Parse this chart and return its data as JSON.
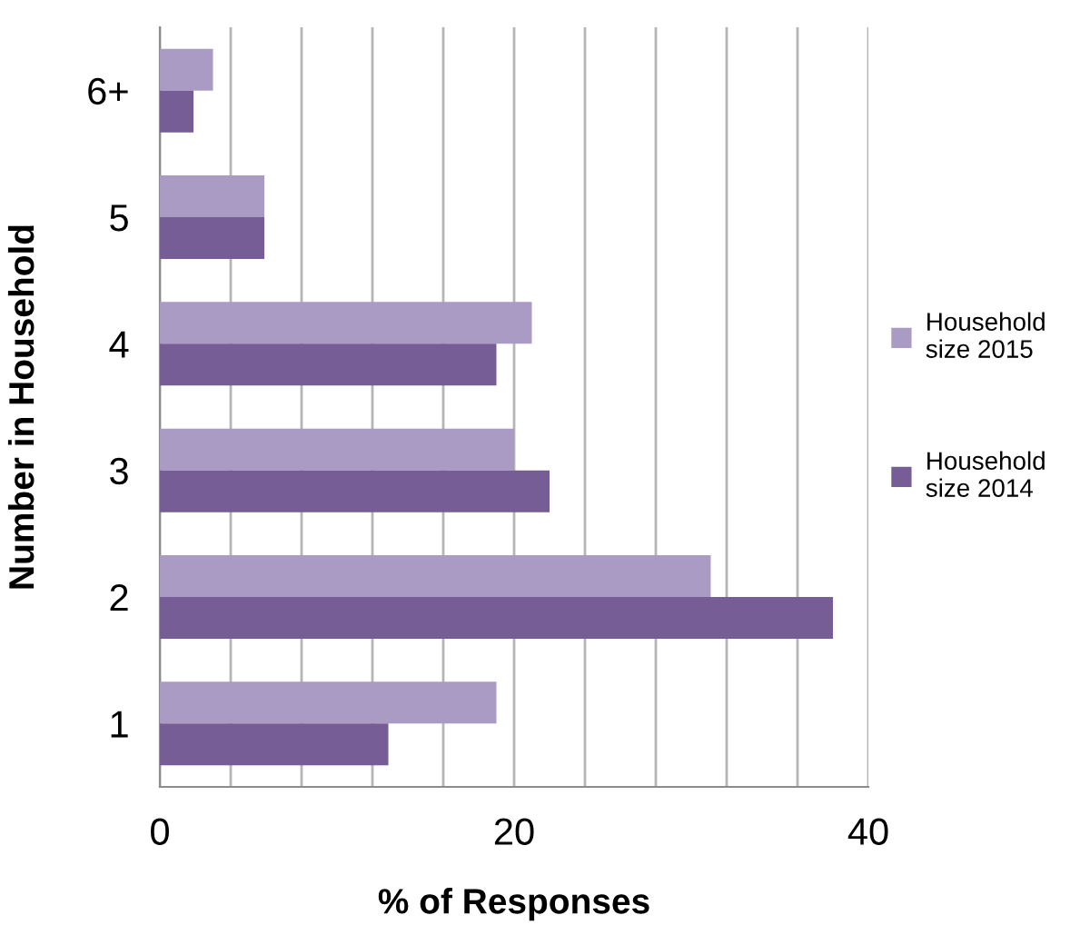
{
  "chart_data": {
    "type": "bar",
    "orientation": "horizontal",
    "categories": [
      "6+",
      "5",
      "4",
      "3",
      "2",
      "1"
    ],
    "series": [
      {
        "name": "Household\nsize 2015",
        "color": "#a99bc4",
        "values": [
          3.0,
          5.9,
          21.0,
          20.0,
          31.1,
          19.0
        ]
      },
      {
        "name": "Household\nsize 2014",
        "color": "#765d95",
        "values": [
          1.9,
          5.9,
          19.0,
          22.0,
          38.0,
          12.9
        ]
      }
    ],
    "xlim": [
      0,
      40
    ],
    "xticks": [
      0,
      {
        "value": 4,
        "label": null
      },
      {
        "value": 8,
        "label": null
      },
      {
        "value": 12,
        "label": null
      },
      {
        "value": 16,
        "label": null
      },
      20,
      {
        "value": 24,
        "label": null
      },
      {
        "value": 28,
        "label": null
      },
      {
        "value": 32,
        "label": null
      },
      {
        "value": 36,
        "label": null
      },
      40
    ],
    "xlabel": "% of Responses",
    "ylabel": "Number in Household",
    "grid": "x",
    "legend": "right"
  }
}
